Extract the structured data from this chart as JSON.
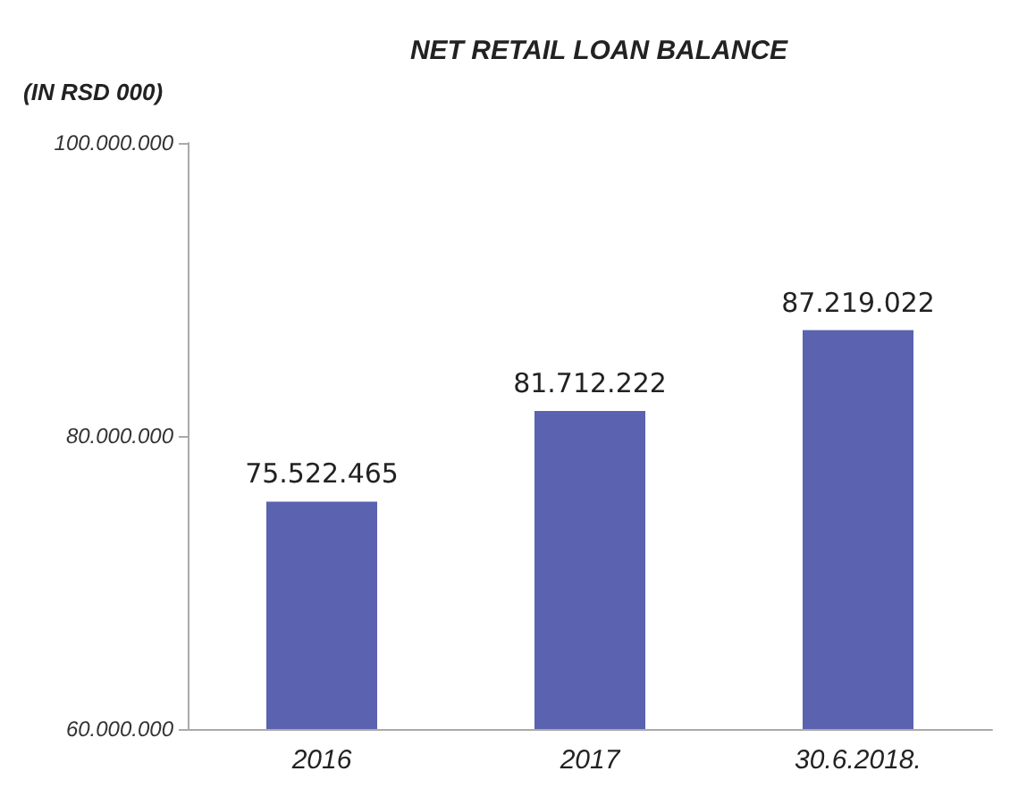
{
  "chart_data": {
    "type": "bar",
    "title": "NET RETAIL LOAN BALANCE",
    "ylabel": "(IN RSD 000)",
    "categories": [
      "2016",
      "2017",
      "30.6.2018."
    ],
    "values": [
      75522465,
      81712222,
      87219022
    ],
    "value_labels": [
      "75.522.465",
      "81.712.222",
      "87.219.022"
    ],
    "color": "#5b62b0",
    "ylim": [
      60000000,
      100000000
    ],
    "yticks": [
      {
        "value": 60000000,
        "label": "60.000.000"
      },
      {
        "value": 80000000,
        "label": "80.000.000"
      },
      {
        "value": 100000000,
        "label": "100.000.000"
      }
    ],
    "grid": false
  }
}
